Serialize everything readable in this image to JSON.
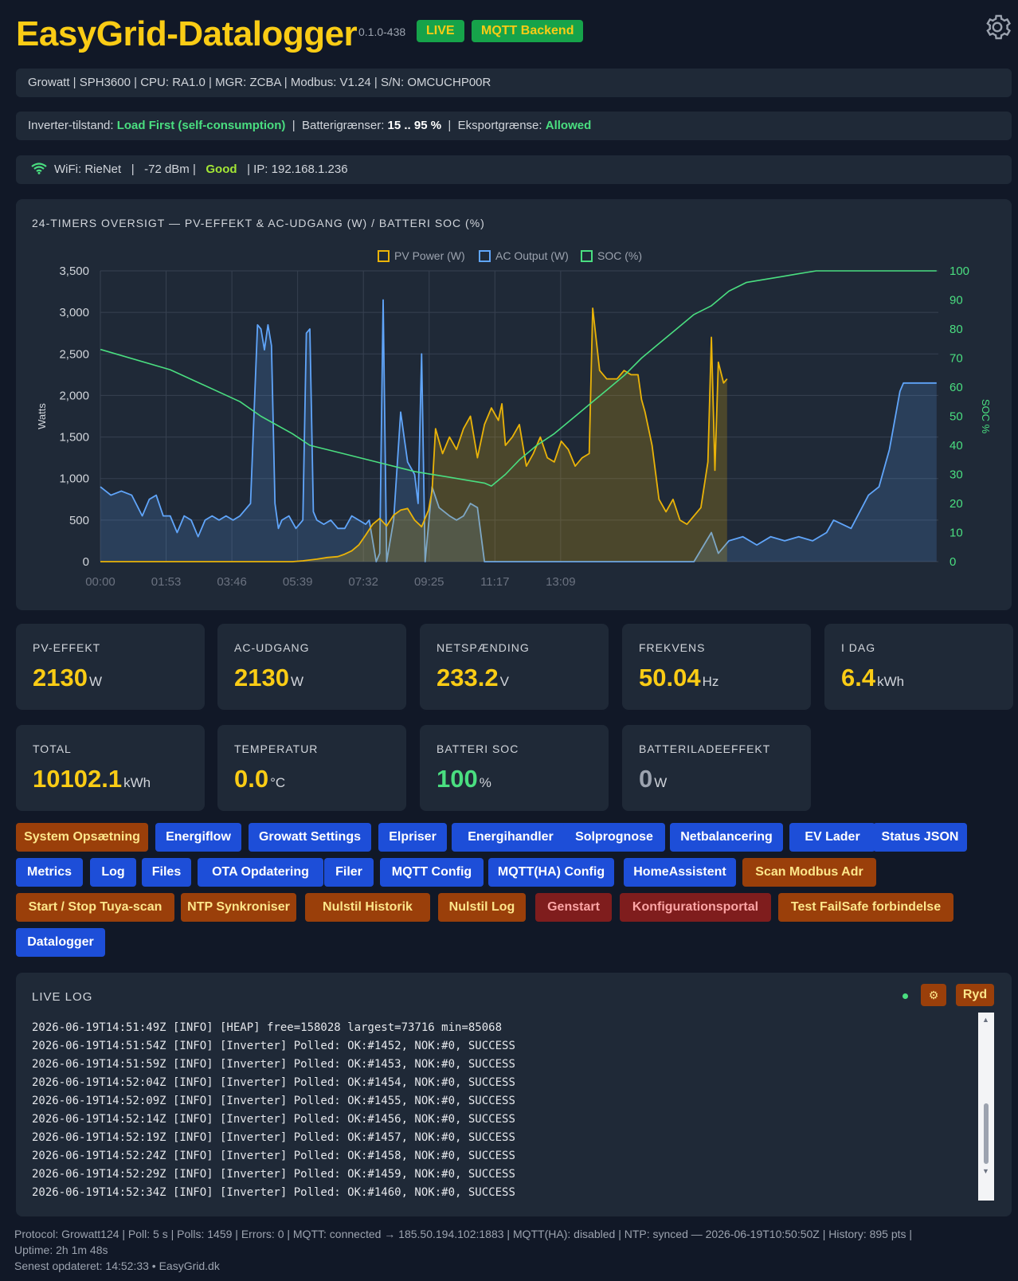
{
  "header": {
    "title": "EasyGrid-Datalogger",
    "version": "0.1.0-438",
    "badge_live": "LIVE",
    "badge_backend": "MQTT Backend"
  },
  "device_bar": {
    "text": "Growatt  |  SPH3600  |  CPU: RA1.0  |  MGR: ZCBA  |  Modbus: V1.24  |  S/N: OMCUCHP00R"
  },
  "inverter_bar": {
    "mode_label": "Inverter-tilstand:",
    "mode_value": "Load First (self-consumption)",
    "sep1": "|",
    "battery_label": "Batterigrænser:",
    "battery_value": "15 .. 95 %",
    "sep2": "|",
    "export_label": "Eksportgrænse:",
    "export_value": "Allowed"
  },
  "wifi_bar": {
    "icon": "wifi-icon",
    "ssid_text": "WiFi: RieNet",
    "sep1": "|",
    "rssi_text": "-72  dBm |",
    "quality": "Good",
    "ip_text": "|  IP:  192.168.1.236"
  },
  "chart_data": {
    "type": "line",
    "title": "24-TIMERS OVERSIGT — PV-EFFEKT & AC-UDGANG (W) / BATTERI SOC (%)",
    "ylabel": "Watts",
    "y2label": "SOC %",
    "ylim": [
      0,
      3500
    ],
    "y2lim": [
      0,
      100
    ],
    "yticks": [
      "0",
      "500",
      "1,000",
      "1,500",
      "2,000",
      "2,500",
      "3,000",
      "3,500"
    ],
    "y2ticks": [
      "0",
      "10",
      "20",
      "30",
      "40",
      "50",
      "60",
      "70",
      "80",
      "90",
      "100"
    ],
    "xticks": [
      "00:00",
      "01:53",
      "03:46",
      "05:39",
      "07:32",
      "09:25",
      "11:17",
      "13:09"
    ],
    "legend_position": "top-center",
    "grid": true,
    "series": [
      {
        "name": "PV Power (W)",
        "color": "#eab308",
        "points": [
          [
            0,
            0
          ],
          [
            5.5,
            0
          ],
          [
            5.8,
            10
          ],
          [
            6.2,
            30
          ],
          [
            6.5,
            50
          ],
          [
            6.8,
            60
          ],
          [
            7.0,
            90
          ],
          [
            7.2,
            130
          ],
          [
            7.4,
            200
          ],
          [
            7.6,
            320
          ],
          [
            7.8,
            450
          ],
          [
            8.0,
            520
          ],
          [
            8.2,
            430
          ],
          [
            8.4,
            560
          ],
          [
            8.6,
            620
          ],
          [
            8.8,
            640
          ],
          [
            9.0,
            500
          ],
          [
            9.2,
            420
          ],
          [
            9.4,
            620
          ],
          [
            9.5,
            850
          ],
          [
            9.6,
            1600
          ],
          [
            9.7,
            1450
          ],
          [
            9.8,
            1300
          ],
          [
            10.0,
            1500
          ],
          [
            10.2,
            1350
          ],
          [
            10.4,
            1600
          ],
          [
            10.6,
            1750
          ],
          [
            10.8,
            1250
          ],
          [
            11.0,
            1650
          ],
          [
            11.2,
            1850
          ],
          [
            11.4,
            1700
          ],
          [
            11.5,
            1900
          ],
          [
            11.6,
            1400
          ],
          [
            11.8,
            1500
          ],
          [
            12.0,
            1650
          ],
          [
            12.2,
            1150
          ],
          [
            12.4,
            1300
          ],
          [
            12.6,
            1500
          ],
          [
            12.8,
            1250
          ],
          [
            13.0,
            1200
          ],
          [
            13.2,
            1450
          ],
          [
            13.4,
            1350
          ],
          [
            13.6,
            1150
          ],
          [
            13.8,
            1250
          ],
          [
            14.0,
            1300
          ],
          [
            14.1,
            3050
          ],
          [
            14.3,
            2300
          ],
          [
            14.5,
            2200
          ],
          [
            14.8,
            2200
          ],
          [
            15.0,
            2300
          ],
          [
            15.2,
            2250
          ],
          [
            15.4,
            2250
          ],
          [
            15.5,
            1950
          ],
          [
            15.6,
            1800
          ],
          [
            15.8,
            1400
          ],
          [
            16.0,
            750
          ],
          [
            16.2,
            600
          ],
          [
            16.4,
            750
          ],
          [
            16.6,
            500
          ],
          [
            16.8,
            450
          ],
          [
            17.0,
            550
          ],
          [
            17.2,
            650
          ],
          [
            17.4,
            1200
          ],
          [
            17.5,
            2700
          ],
          [
            17.6,
            1100
          ],
          [
            17.7,
            2400
          ],
          [
            17.85,
            2150
          ],
          [
            17.95,
            2200
          ]
        ]
      },
      {
        "name": "AC Output (W)",
        "color": "#60a5fa",
        "points": [
          [
            0,
            900
          ],
          [
            0.3,
            800
          ],
          [
            0.6,
            850
          ],
          [
            0.9,
            800
          ],
          [
            1.2,
            550
          ],
          [
            1.4,
            750
          ],
          [
            1.6,
            800
          ],
          [
            1.8,
            550
          ],
          [
            2.0,
            550
          ],
          [
            2.2,
            350
          ],
          [
            2.4,
            550
          ],
          [
            2.6,
            500
          ],
          [
            2.8,
            300
          ],
          [
            3.0,
            500
          ],
          [
            3.2,
            550
          ],
          [
            3.4,
            500
          ],
          [
            3.6,
            550
          ],
          [
            3.8,
            500
          ],
          [
            4.0,
            550
          ],
          [
            4.3,
            700
          ],
          [
            4.5,
            2850
          ],
          [
            4.6,
            2800
          ],
          [
            4.7,
            2550
          ],
          [
            4.8,
            2850
          ],
          [
            4.9,
            2600
          ],
          [
            5.0,
            700
          ],
          [
            5.1,
            400
          ],
          [
            5.2,
            500
          ],
          [
            5.4,
            550
          ],
          [
            5.6,
            400
          ],
          [
            5.7,
            450
          ],
          [
            5.8,
            500
          ],
          [
            5.9,
            2750
          ],
          [
            6.0,
            2800
          ],
          [
            6.1,
            600
          ],
          [
            6.2,
            500
          ],
          [
            6.4,
            450
          ],
          [
            6.6,
            500
          ],
          [
            6.8,
            400
          ],
          [
            7.0,
            400
          ],
          [
            7.2,
            550
          ],
          [
            7.4,
            500
          ],
          [
            7.6,
            450
          ],
          [
            7.7,
            500
          ],
          [
            7.9,
            0
          ],
          [
            8.0,
            100
          ],
          [
            8.1,
            3150
          ],
          [
            8.2,
            0
          ],
          [
            8.4,
            500
          ],
          [
            8.6,
            1800
          ],
          [
            8.7,
            1500
          ],
          [
            8.8,
            1200
          ],
          [
            9.0,
            1050
          ],
          [
            9.1,
            700
          ],
          [
            9.2,
            2500
          ],
          [
            9.3,
            0
          ],
          [
            9.5,
            900
          ],
          [
            9.7,
            650
          ],
          [
            10.0,
            550
          ],
          [
            10.2,
            500
          ],
          [
            10.4,
            550
          ],
          [
            10.6,
            700
          ],
          [
            10.8,
            650
          ],
          [
            11.0,
            0
          ],
          [
            17.0,
            0
          ],
          [
            17.5,
            350
          ],
          [
            17.7,
            100
          ],
          [
            18.0,
            250
          ],
          [
            18.4,
            300
          ],
          [
            18.8,
            200
          ],
          [
            19.2,
            300
          ],
          [
            19.6,
            250
          ],
          [
            20.0,
            300
          ],
          [
            20.4,
            250
          ],
          [
            20.8,
            350
          ],
          [
            21.0,
            500
          ],
          [
            21.5,
            400
          ],
          [
            22.0,
            800
          ],
          [
            22.3,
            900
          ],
          [
            22.6,
            1350
          ],
          [
            22.9,
            2050
          ],
          [
            23.0,
            2150
          ],
          [
            23.95,
            2150
          ]
        ]
      },
      {
        "name": "SOC (%)",
        "color": "#4ade80",
        "points": [
          [
            0,
            73
          ],
          [
            2.0,
            66
          ],
          [
            4.0,
            55
          ],
          [
            4.6,
            50
          ],
          [
            5.5,
            44
          ],
          [
            6.0,
            40
          ],
          [
            7.0,
            37
          ],
          [
            8.0,
            34
          ],
          [
            9.0,
            31
          ],
          [
            10.0,
            29
          ],
          [
            10.5,
            28
          ],
          [
            11.0,
            27
          ],
          [
            11.2,
            26
          ],
          [
            11.6,
            30
          ],
          [
            12.0,
            35
          ],
          [
            12.5,
            40
          ],
          [
            13.0,
            44
          ],
          [
            13.5,
            49
          ],
          [
            14.0,
            54
          ],
          [
            14.5,
            59
          ],
          [
            15.0,
            64
          ],
          [
            15.5,
            70
          ],
          [
            16.0,
            75
          ],
          [
            16.5,
            80
          ],
          [
            17.0,
            85
          ],
          [
            17.5,
            88
          ],
          [
            18.0,
            93
          ],
          [
            18.5,
            96
          ],
          [
            19.0,
            97
          ],
          [
            19.5,
            98
          ],
          [
            20.0,
            99
          ],
          [
            20.5,
            100
          ],
          [
            21.0,
            100
          ],
          [
            21.5,
            100
          ],
          [
            22.0,
            100
          ],
          [
            22.5,
            100
          ],
          [
            23.0,
            100
          ],
          [
            23.95,
            100
          ]
        ]
      }
    ]
  },
  "stats": [
    {
      "label": "PV-EFFEKT",
      "value": "2130",
      "unit": "W",
      "color": "#facc15"
    },
    {
      "label": "AC-UDGANG",
      "value": "2130",
      "unit": "W",
      "color": "#facc15"
    },
    {
      "label": "NETSPÆNDING",
      "value": "233.2",
      "unit": "V",
      "color": "#facc15"
    },
    {
      "label": "FREKVENS",
      "value": "50.04",
      "unit": "Hz",
      "color": "#facc15"
    },
    {
      "label": "I DAG",
      "value": "6.4",
      "unit": "kWh",
      "color": "#facc15"
    },
    {
      "label": "TOTAL",
      "value": "10102.1",
      "unit": "kWh",
      "color": "#facc15"
    },
    {
      "label": "TEMPERATUR",
      "value": "0.0",
      "unit": "°C",
      "color": "#facc15"
    },
    {
      "label": "BATTERI SOC",
      "value": "100",
      "unit": "%",
      "color": "#4ade80"
    },
    {
      "label": "BATTERILADEEFFEKT",
      "value": "0",
      "unit": "W",
      "color": "#9ca3af"
    }
  ],
  "buttons": [
    {
      "label": "System Opsætning",
      "style": "orange"
    },
    {
      "label": "Energiflow",
      "style": "blue"
    },
    {
      "label": "Growatt Settings",
      "style": "blue"
    },
    {
      "label": "Elpriser",
      "style": "blue"
    },
    {
      "label": "Energihandler",
      "style": "blue"
    },
    {
      "label": "Solprognose",
      "style": "blue"
    },
    {
      "label": "Netbalancering",
      "style": "blue"
    },
    {
      "label": "EV Lader",
      "style": "blue"
    },
    {
      "label": "Status JSON",
      "style": "blue"
    },
    {
      "label": "Metrics",
      "style": "blue"
    },
    {
      "label": "Log",
      "style": "blue"
    },
    {
      "label": "Files",
      "style": "blue"
    },
    {
      "label": "OTA Opdatering",
      "style": "blue"
    },
    {
      "label": "Filer",
      "style": "blue"
    },
    {
      "label": "MQTT Config",
      "style": "blue"
    },
    {
      "label": "MQTT(HA) Config",
      "style": "blue"
    },
    {
      "label": "HomeAssistent",
      "style": "blue"
    },
    {
      "label": "Scan Modbus Adr",
      "style": "orange"
    },
    {
      "label": "Start / Stop Tuya-scan",
      "style": "orange"
    },
    {
      "label": "NTP Synkroniser",
      "style": "orange"
    },
    {
      "label": "Nulstil Historik",
      "style": "orange"
    },
    {
      "label": "Nulstil Log",
      "style": "orange"
    },
    {
      "label": "Genstart",
      "style": "red"
    },
    {
      "label": "Konfigurationsportal",
      "style": "red"
    },
    {
      "label": "Test FailSafe forbindelse",
      "style": "orange"
    },
    {
      "label": "Datalogger",
      "style": "blue"
    }
  ],
  "live_log": {
    "title": "LIVE LOG",
    "gear_label": "⚙",
    "clear_label": "Ryd",
    "lines": [
      "2026-06-19T14:51:49Z [INFO] [HEAP] free=158028 largest=73716 min=85068",
      "2026-06-19T14:51:54Z [INFO] [Inverter] Polled: OK:#1452, NOK:#0, SUCCESS",
      "2026-06-19T14:51:59Z [INFO] [Inverter] Polled: OK:#1453, NOK:#0, SUCCESS",
      "2026-06-19T14:52:04Z [INFO] [Inverter] Polled: OK:#1454, NOK:#0, SUCCESS",
      "2026-06-19T14:52:09Z [INFO] [Inverter] Polled: OK:#1455, NOK:#0, SUCCESS",
      "2026-06-19T14:52:14Z [INFO] [Inverter] Polled: OK:#1456, NOK:#0, SUCCESS",
      "2026-06-19T14:52:19Z [INFO] [Inverter] Polled: OK:#1457, NOK:#0, SUCCESS",
      "2026-06-19T14:52:24Z [INFO] [Inverter] Polled: OK:#1458, NOK:#0, SUCCESS",
      "2026-06-19T14:52:29Z [INFO] [Inverter] Polled: OK:#1459, NOK:#0, SUCCESS",
      "2026-06-19T14:52:34Z [INFO] [Inverter] Polled: OK:#1460, NOK:#0, SUCCESS"
    ]
  },
  "footer": {
    "line1": "Protocol: Growatt124  |  Poll: 5 s  |  Polls: 1459  |  Errors: 0  |  MQTT: connected → 185.50.194.102:1883  |  MQTT(HA): disabled  |  NTP: synced — 2026-06-19T10:50:50Z  |  History: 895 pts  |",
    "line2": "Uptime: 2h 1m 48s",
    "line3": "Senest opdateret: 14:52:33  • EasyGrid.dk"
  }
}
